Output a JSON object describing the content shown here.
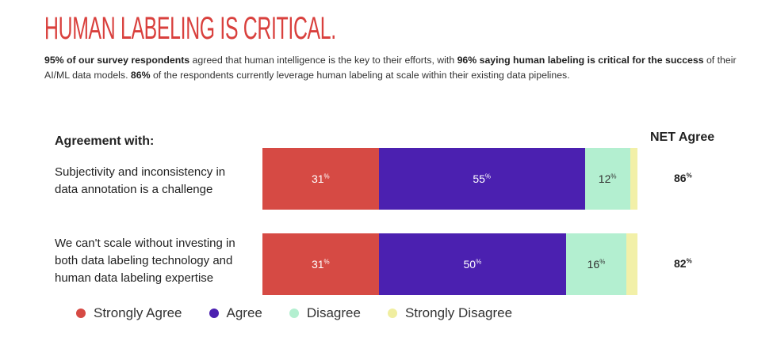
{
  "title": "HUMAN LABELING IS CRITICAL.",
  "intro": {
    "b1": "95% of our survey respondents",
    "t1": " agreed that human intelligence is the key to their efforts, with ",
    "b2": "96% saying human labeling is critical for the success",
    "t2": " of their AI/ML data models. ",
    "b3": "86%",
    "t3": " of the respondents currently leverage human labeling at scale within their existing data pipelines."
  },
  "chart_data": {
    "type": "bar",
    "stacked": true,
    "orientation": "horizontal",
    "header": "Agreement with:",
    "net_header": "NET Agree",
    "categories": [
      "Subjectivity and inconsistency in data annotation is a challenge",
      "We can't scale without investing in both data labeling technology and human data labeling expertise"
    ],
    "series": [
      {
        "name": "Strongly Agree",
        "color": "#d64a44",
        "values": [
          31,
          31
        ]
      },
      {
        "name": "Agree",
        "color": "#4b20b0",
        "values": [
          55,
          50
        ]
      },
      {
        "name": "Disagree",
        "color": "#b3efd0",
        "values": [
          12,
          16
        ]
      },
      {
        "name": "Strongly Disagree",
        "color": "#f2f0a8",
        "values": [
          2,
          3
        ]
      }
    ],
    "net_agree": [
      86,
      82
    ],
    "unit": "%",
    "legend_position": "bottom"
  }
}
